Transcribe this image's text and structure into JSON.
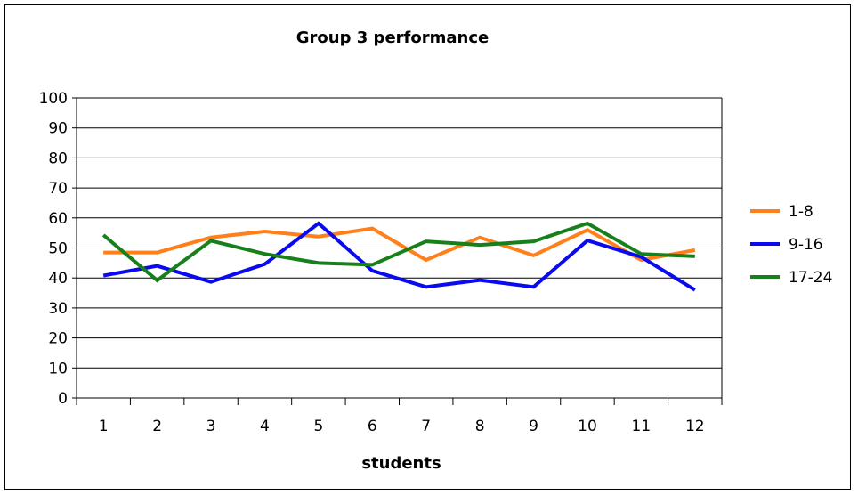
{
  "chart_data": {
    "type": "line",
    "title": "Group 3 performance",
    "xlabel": "students",
    "ylabel": "",
    "ylim": [
      0,
      100
    ],
    "yticks": [
      0,
      10,
      20,
      30,
      40,
      50,
      60,
      70,
      80,
      90,
      100
    ],
    "categories": [
      "1",
      "2",
      "3",
      "4",
      "5",
      "6",
      "7",
      "8",
      "9",
      "10",
      "11",
      "12"
    ],
    "grid": true,
    "legend": "right",
    "series": [
      {
        "name": "1-8",
        "color": "#ff7f1a",
        "values": [
          48.5,
          48.5,
          53.5,
          55.5,
          53.8,
          56.5,
          46,
          53.5,
          47.5,
          56,
          46,
          49.3
        ]
      },
      {
        "name": "9-16",
        "color": "#0a0af0",
        "values": [
          40.8,
          44,
          38.7,
          44.6,
          58.2,
          42.4,
          37,
          39.3,
          37,
          52.5,
          47,
          36
        ]
      },
      {
        "name": "17-24",
        "color": "#17801a",
        "values": [
          54.3,
          39.2,
          52.4,
          48,
          45,
          44.4,
          52.2,
          51,
          52.2,
          58.2,
          48,
          47.2
        ]
      }
    ]
  }
}
